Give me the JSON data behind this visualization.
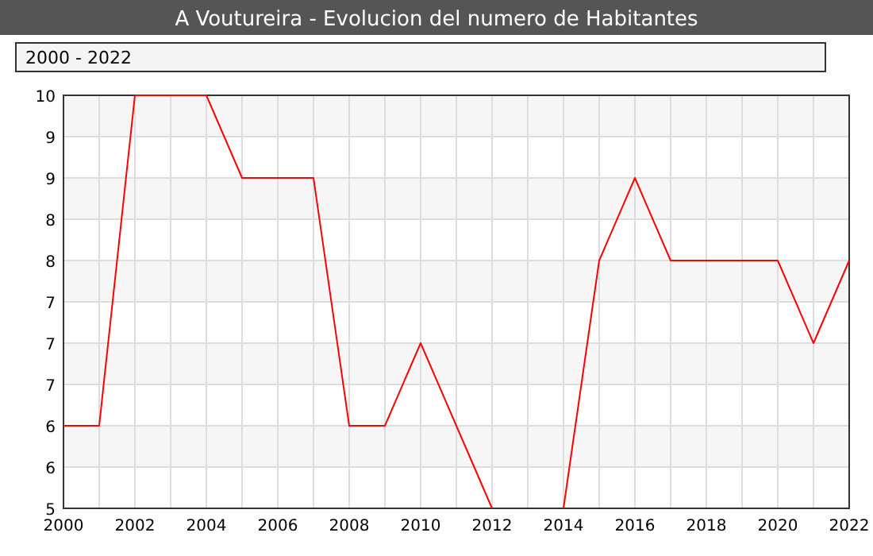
{
  "chart_data": {
    "type": "line",
    "title": "A Voutureira - Evolucion del numero de Habitantes",
    "subtitle": "2000 - 2022",
    "x": [
      2000,
      2001,
      2002,
      2003,
      2004,
      2005,
      2006,
      2007,
      2008,
      2009,
      2010,
      2011,
      2012,
      2013,
      2014,
      2015,
      2016,
      2017,
      2018,
      2019,
      2020,
      2021,
      2022
    ],
    "series": [
      {
        "color": "#ff0000",
        "values": [
          6,
          6,
          10,
          10,
          10,
          9,
          9,
          9,
          6,
          6,
          7,
          6,
          5,
          null,
          5,
          8,
          9,
          8,
          8,
          8,
          8,
          7,
          8
        ]
      }
    ],
    "xlim": [
      2000,
      2022
    ],
    "xticks": [
      2000,
      {
        "value": 2001,
        "label": null
      },
      2002,
      {
        "value": 2003,
        "label": null
      },
      2004,
      {
        "value": 2005,
        "label": null
      },
      2006,
      {
        "value": 2007,
        "label": null
      },
      2008,
      {
        "value": 2009,
        "label": null
      },
      2010,
      {
        "value": 2011,
        "label": null
      },
      2012,
      {
        "value": 2013,
        "label": null
      },
      2014,
      {
        "value": 2015,
        "label": null
      },
      2016,
      {
        "value": 2017,
        "label": null
      },
      2018,
      {
        "value": 2019,
        "label": null
      },
      2020,
      {
        "value": 2021,
        "label": null
      },
      2022
    ],
    "ylim": [
      5,
      10
    ],
    "yticks": [
      5,
      {
        "value": 5.5,
        "label": "6"
      },
      6,
      {
        "value": 6.5,
        "label": "7"
      },
      7,
      {
        "value": 7.5,
        "label": "7"
      },
      8,
      {
        "value": 8.5,
        "label": "8"
      },
      9,
      {
        "value": 9.5,
        "label": "9"
      },
      10
    ],
    "grid": true,
    "line_style": "solid",
    "marker": "none"
  }
}
